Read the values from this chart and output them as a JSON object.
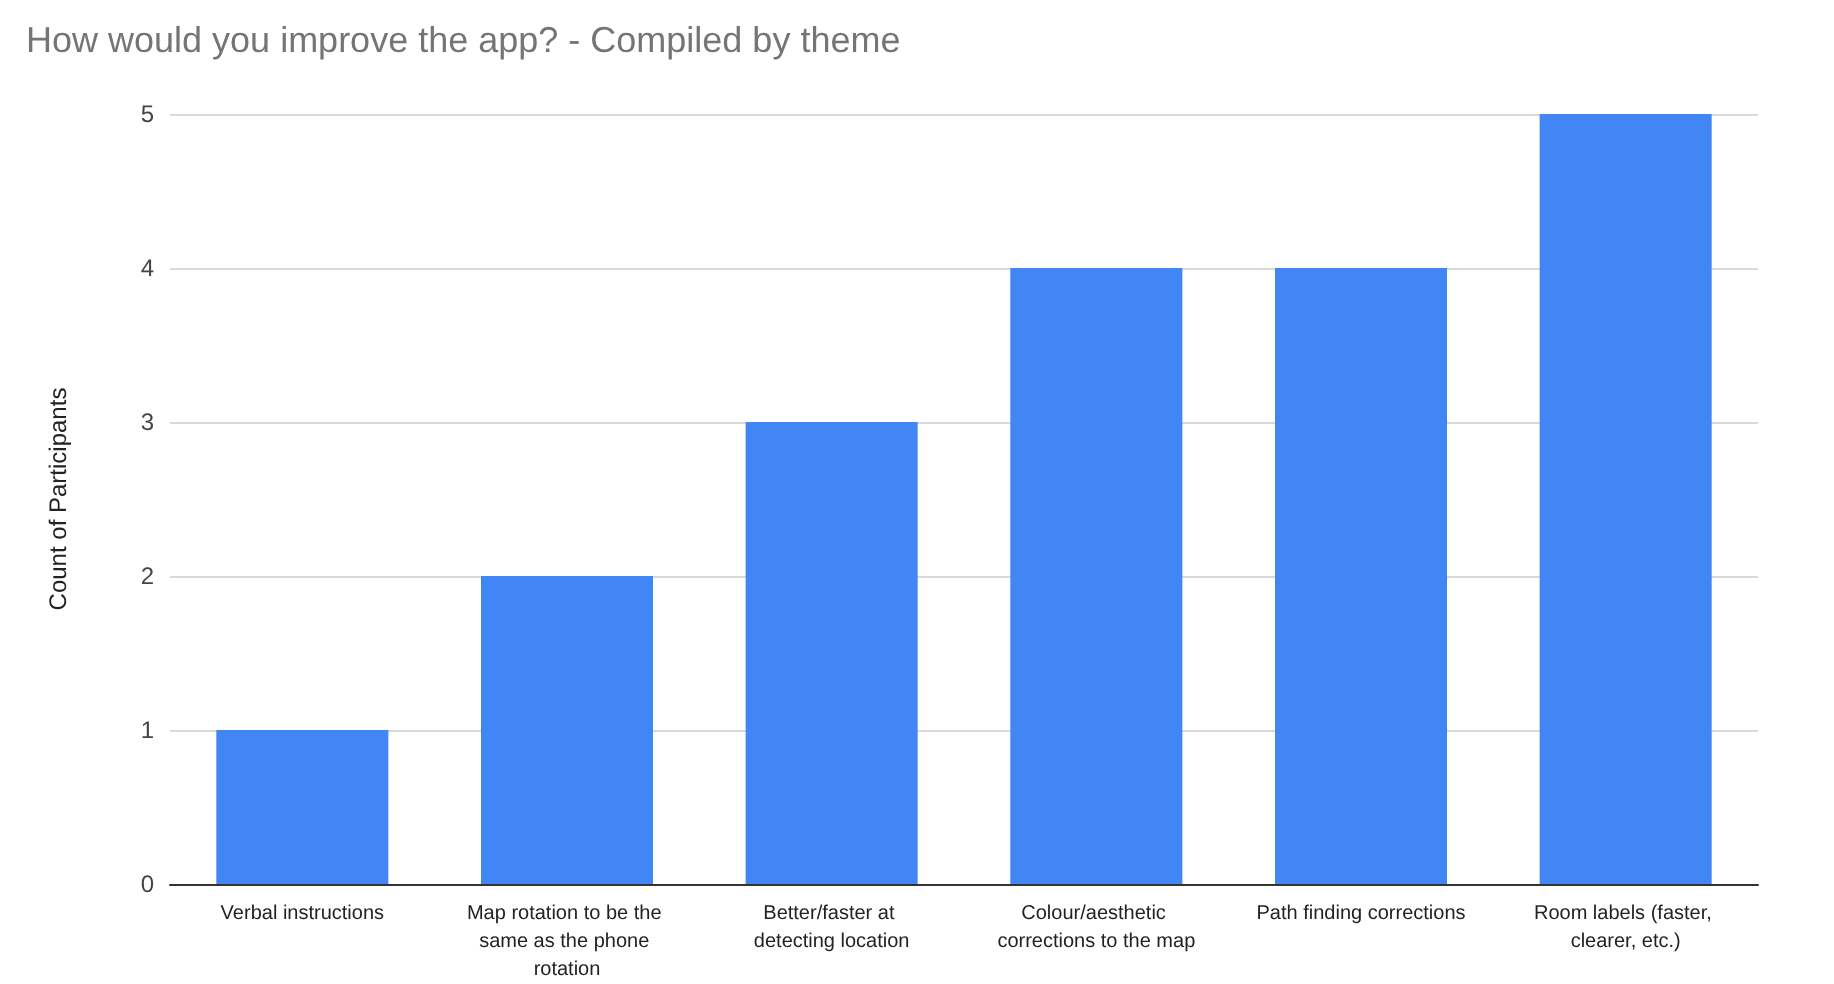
{
  "chart_data": {
    "type": "bar",
    "title": "How would you improve the app? - Compiled by theme",
    "ylabel": "Count of Participants",
    "categories": [
      "Verbal instructions",
      "Map rotation to be the same as the phone rotation",
      "Better/faster at detecting location",
      "Colour/aesthetic corrections to the map",
      "Path finding corrections",
      "Room labels (faster, clearer, etc.)"
    ],
    "values": [
      1,
      2,
      3,
      4,
      4,
      5
    ],
    "color": "#4285f4",
    "ylim": [
      0,
      5
    ],
    "yticks": [
      0,
      1,
      2,
      3,
      4,
      5
    ],
    "grid": "y"
  }
}
